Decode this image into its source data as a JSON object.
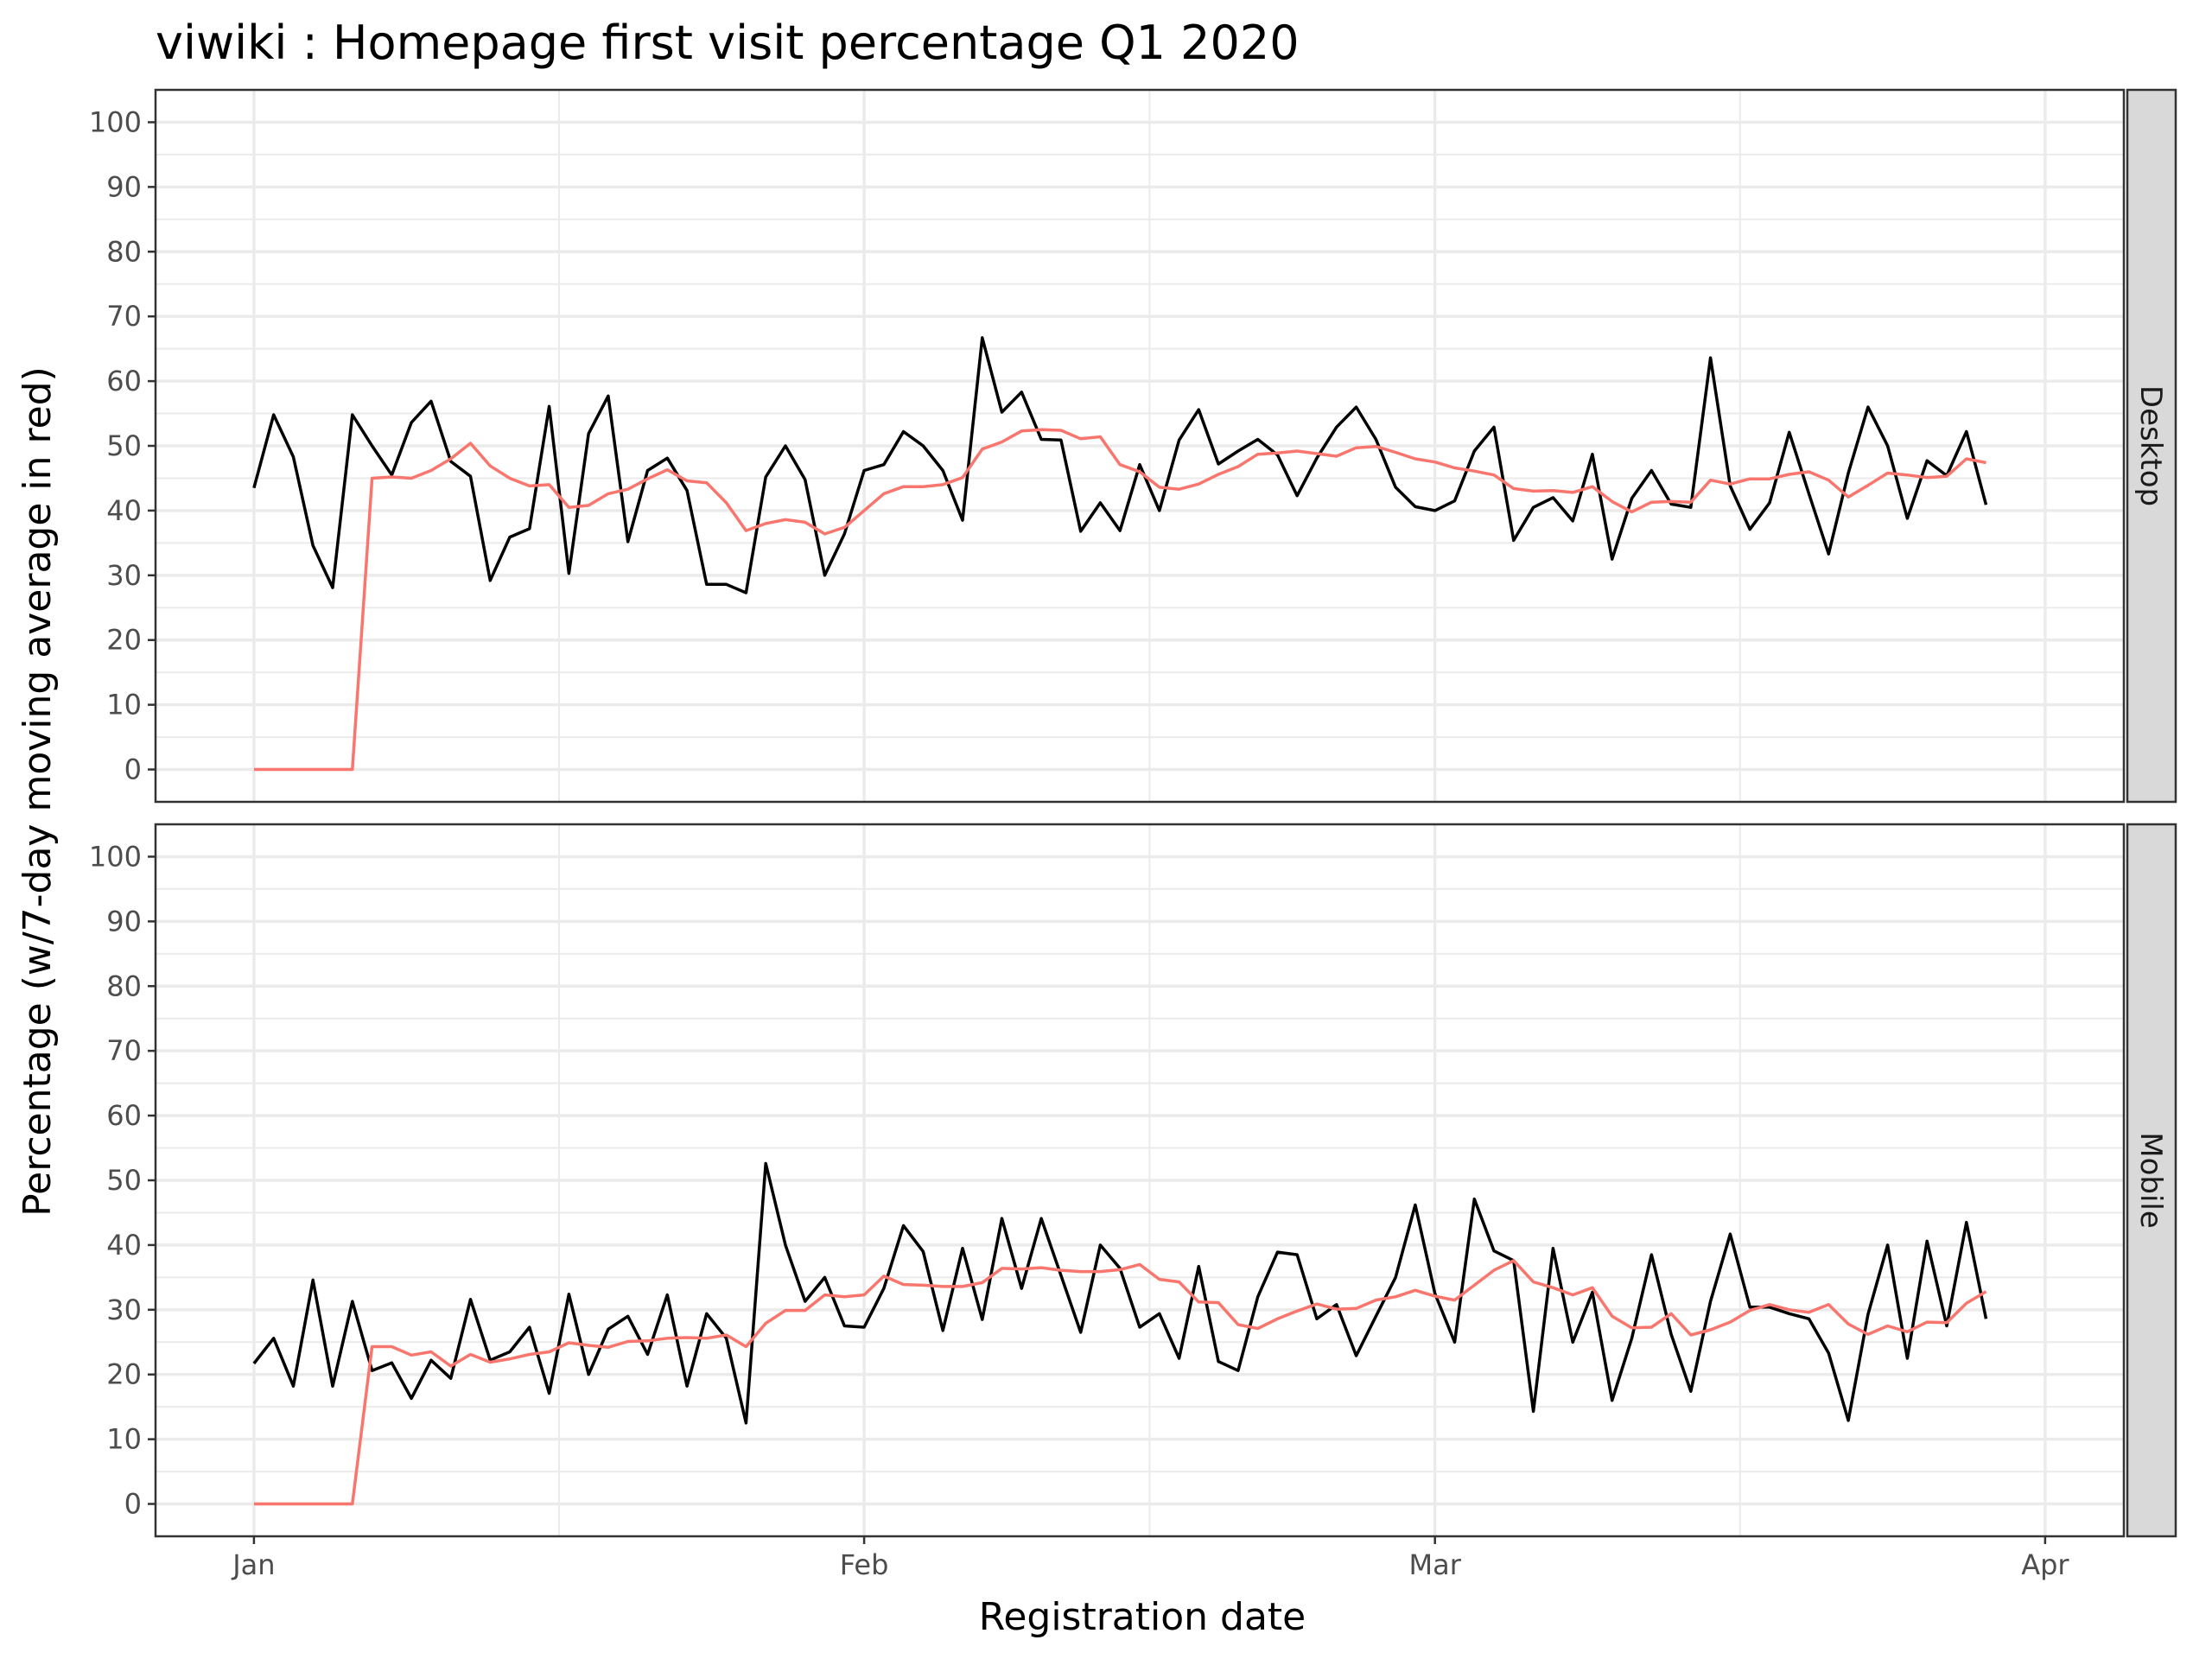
{
  "chart_data": {
    "type": "line",
    "title": "viwiki : Homepage first visit percentage Q1 2020",
    "xlabel": "Registration date",
    "ylabel": "Percentage (w/7-day moving average in red)",
    "x_ticks": [
      "Jan",
      "Feb",
      "Mar",
      "Apr"
    ],
    "x_tick_dates": [
      "2020-01-01",
      "2020-02-01",
      "2020-03-01",
      "2020-04-01"
    ],
    "xlim": [
      "2019-12-27",
      "2020-04-05"
    ],
    "y_ticks": [
      0,
      10,
      20,
      30,
      40,
      50,
      60,
      70,
      80,
      90,
      100
    ],
    "ylim": [
      -5,
      105
    ],
    "grid": true,
    "colors": {
      "daily": "#000000",
      "moving_average": "#f8766d",
      "strip_bg": "#d9d9d9",
      "grid": "#ebebeb",
      "panel_border": "#333333"
    },
    "dates": [
      "2020-01-01",
      "2020-01-02",
      "2020-01-03",
      "2020-01-04",
      "2020-01-05",
      "2020-01-06",
      "2020-01-07",
      "2020-01-08",
      "2020-01-09",
      "2020-01-10",
      "2020-01-11",
      "2020-01-12",
      "2020-01-13",
      "2020-01-14",
      "2020-01-15",
      "2020-01-16",
      "2020-01-17",
      "2020-01-18",
      "2020-01-19",
      "2020-01-20",
      "2020-01-21",
      "2020-01-22",
      "2020-01-23",
      "2020-01-24",
      "2020-01-25",
      "2020-01-26",
      "2020-01-27",
      "2020-01-28",
      "2020-01-29",
      "2020-01-30",
      "2020-01-31",
      "2020-02-01",
      "2020-02-02",
      "2020-02-03",
      "2020-02-04",
      "2020-02-05",
      "2020-02-06",
      "2020-02-07",
      "2020-02-08",
      "2020-02-09",
      "2020-02-10",
      "2020-02-11",
      "2020-02-12",
      "2020-02-13",
      "2020-02-14",
      "2020-02-15",
      "2020-02-16",
      "2020-02-17",
      "2020-02-18",
      "2020-02-19",
      "2020-02-20",
      "2020-02-21",
      "2020-02-22",
      "2020-02-23",
      "2020-02-24",
      "2020-02-25",
      "2020-02-26",
      "2020-02-27",
      "2020-02-28",
      "2020-02-29",
      "2020-03-01",
      "2020-03-02",
      "2020-03-03",
      "2020-03-04",
      "2020-03-05",
      "2020-03-06",
      "2020-03-07",
      "2020-03-08",
      "2020-03-09",
      "2020-03-10",
      "2020-03-11",
      "2020-03-12",
      "2020-03-13",
      "2020-03-14",
      "2020-03-15",
      "2020-03-16",
      "2020-03-17",
      "2020-03-18",
      "2020-03-19",
      "2020-03-20",
      "2020-03-21",
      "2020-03-22",
      "2020-03-23",
      "2020-03-24",
      "2020-03-25",
      "2020-03-26",
      "2020-03-27",
      "2020-03-28",
      "2020-03-29",
      "2020-03-30",
      "2020-03-31"
    ],
    "panels": [
      {
        "facet": "Desktop",
        "series": [
          {
            "role": "daily",
            "values": [
              43.5,
              54.8,
              48.3,
              34.6,
              28.1,
              54.8,
              50.0,
              45.5,
              53.6,
              56.9,
              47.6,
              45.3,
              29.2,
              35.9,
              37.2,
              56.1,
              30.3,
              51.9,
              57.7,
              35.2,
              46.2,
              48.1,
              43.1,
              28.6,
              28.6,
              27.3,
              45.2,
              50.0,
              44.8,
              30.0,
              36.4,
              46.2,
              47.1,
              52.2,
              50.0,
              46.2,
              38.5,
              66.7,
              55.2,
              58.3,
              51.0,
              50.9,
              36.8,
              41.2,
              36.9,
              47.1,
              40.0,
              50.9,
              55.6,
              47.2,
              49.2,
              51.0,
              48.6,
              42.3,
              48.1,
              52.9,
              56.0,
              51.0,
              43.6,
              40.6,
              40.0,
              41.5,
              49.2,
              52.9,
              35.4,
              40.5,
              42.0,
              38.4,
              48.7,
              32.5,
              41.9,
              46.2,
              41.0,
              40.5,
              63.6,
              43.8,
              37.1,
              41.2,
              52.1,
              42.6,
              33.3,
              45.8,
              56.0,
              50.0,
              38.8,
              47.7,
              45.4,
              52.2,
              40.9
            ]
          },
          {
            "role": "moving_average",
            "values": [
              0,
              0,
              0,
              0,
              0,
              0,
              45.0,
              45.2,
              45.0,
              46.2,
              48.0,
              50.4,
              46.9,
              45.0,
              43.8,
              44.0,
              40.5,
              40.8,
              42.6,
              43.3,
              44.9,
              46.3,
              44.6,
              44.3,
              41.2,
              36.9,
              38.0,
              38.6,
              38.2,
              36.4,
              37.4,
              40.0,
              42.6,
              43.7,
              43.7,
              44.0,
              45.1,
              49.5,
              50.6,
              52.3,
              52.5,
              52.4,
              51.1,
              51.4,
              47.1,
              46.0,
              43.6,
              43.3,
              44.1,
              45.6,
              46.8,
              48.7,
              48.9,
              49.2,
              48.8,
              48.4,
              49.7,
              49.9,
              49.0,
              48.0,
              47.5,
              46.6,
              46.1,
              45.5,
              43.4,
              43.0,
              43.1,
              42.8,
              43.7,
              41.4,
              39.8,
              41.3,
              41.4,
              41.3,
              44.7,
              44.1,
              44.9,
              44.9,
              45.6,
              46.0,
              44.7,
              42.1,
              43.9,
              45.8,
              45.5,
              45.1,
              45.3,
              48.0,
              47.4
            ]
          }
        ]
      },
      {
        "facet": "Mobile",
        "series": [
          {
            "role": "daily",
            "values": [
              21.7,
              25.6,
              18.2,
              34.6,
              18.2,
              31.3,
              20.6,
              21.8,
              16.3,
              22.2,
              19.4,
              31.6,
              22.2,
              23.5,
              27.3,
              17.1,
              32.4,
              20.0,
              27.0,
              29.0,
              23.1,
              32.3,
              18.2,
              29.4,
              25.6,
              12.5,
              52.6,
              40.0,
              31.3,
              35.0,
              27.5,
              27.3,
              33.3,
              43.0,
              39.0,
              26.8,
              39.5,
              28.5,
              44.1,
              33.3,
              44.1,
              35.3,
              26.5,
              40.0,
              36.4,
              27.3,
              29.4,
              22.5,
              36.7,
              22.0,
              20.6,
              32.0,
              38.9,
              38.5,
              28.6,
              30.8,
              22.9,
              29.0,
              35.0,
              46.2,
              32.5,
              25.0,
              47.1,
              39.1,
              37.6,
              14.3,
              39.5,
              25.0,
              32.7,
              16.0,
              25.6,
              38.5,
              26.2,
              17.4,
              31.3,
              41.7,
              30.4,
              30.4,
              29.4,
              28.6,
              23.3,
              12.9,
              29.3,
              40.0,
              22.5,
              40.6,
              27.5,
              43.5,
              28.6
            ]
          },
          {
            "role": "moving_average",
            "values": [
              0,
              0,
              0,
              0,
              0,
              0,
              24.3,
              24.3,
              23.0,
              23.5,
              21.3,
              23.1,
              21.9,
              22.4,
              23.1,
              23.5,
              24.9,
              24.5,
              24.2,
              25.1,
              25.2,
              25.6,
              25.7,
              25.6,
              26.1,
              24.3,
              27.9,
              29.9,
              29.9,
              32.3,
              32.0,
              32.3,
              35.2,
              33.9,
              33.8,
              33.6,
              33.6,
              34.2,
              36.4,
              36.3,
              36.5,
              36.1,
              35.9,
              35.9,
              36.2,
              37.0,
              34.7,
              34.3,
              31.2,
              31.1,
              27.7,
              27.1,
              28.6,
              29.8,
              30.9,
              30.1,
              30.2,
              31.5,
              32.0,
              33.0,
              32.1,
              31.5,
              33.8,
              36.1,
              37.6,
              34.3,
              33.4,
              32.3,
              33.4,
              29.0,
              27.2,
              27.3,
              29.4,
              26.1,
              26.9,
              28.1,
              29.9,
              30.8,
              30.0,
              29.6,
              30.8,
              27.8,
              26.2,
              27.5,
              26.6,
              28.1,
              28.0,
              31.0,
              32.8
            ]
          }
        ]
      }
    ]
  }
}
